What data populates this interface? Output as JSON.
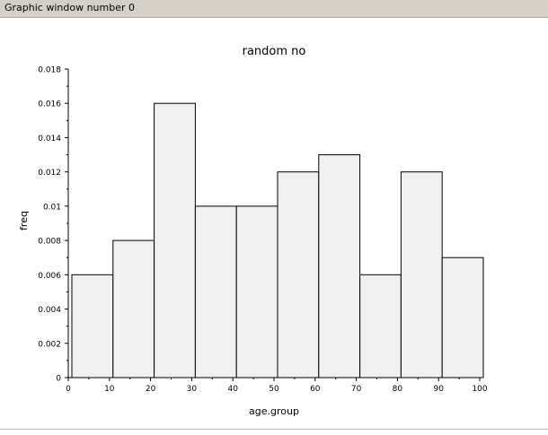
{
  "window": {
    "title": "Graphic window number 0"
  },
  "chart_data": {
    "type": "bar",
    "title": "random no",
    "xlabel": "age.group",
    "ylabel": "freq",
    "bin_edges": [
      0,
      10,
      20,
      30,
      40,
      50,
      60,
      70,
      80,
      90,
      100
    ],
    "values": [
      0.006,
      0.008,
      0.016,
      0.01,
      0.01,
      0.012,
      0.013,
      0.006,
      0.012,
      0.007
    ],
    "xlim": [
      0,
      100
    ],
    "ylim": [
      0,
      0.018
    ],
    "x_ticks": [
      "0",
      "10",
      "20",
      "30",
      "40",
      "50",
      "60",
      "70",
      "80",
      "90",
      "100"
    ],
    "y_ticks": [
      "0",
      "0.002",
      "0.004",
      "0.006",
      "0.008",
      "0.01",
      "0.012",
      "0.014",
      "0.016",
      "0.018"
    ],
    "grid": false,
    "bar_color": "#f0f0f0",
    "edge_color": "#000000"
  }
}
